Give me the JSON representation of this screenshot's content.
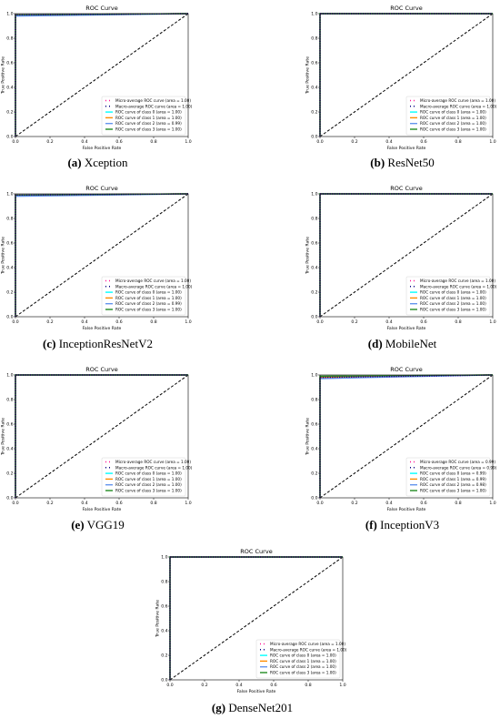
{
  "common": {
    "title": "ROC Curve",
    "xlabel": "False Positive Rate",
    "ylabel": "True Positive Rate",
    "ticks": [
      "0.0",
      "0.2",
      "0.4",
      "0.6",
      "0.8",
      "1.0"
    ]
  },
  "chart_data": [
    {
      "type": "line",
      "panel_label": "(a)",
      "model": "Xception",
      "title": "ROC Curve",
      "xlabel": "False Positive Rate",
      "ylabel": "True Positive Rate",
      "xlim": [
        0,
        1
      ],
      "ylim": [
        0,
        1
      ],
      "grid": false,
      "legend": "lower-right",
      "tick_values": [
        "0.0",
        "0.2",
        "0.4",
        "0.6",
        "0.8",
        "1.0"
      ],
      "series": [
        {
          "name": "Micro-average ROC curve (area = 1.00)",
          "color": "#ff1493",
          "style": "dotted",
          "x": [
            0,
            0.0,
            1
          ],
          "y": [
            0,
            0.99,
            1
          ]
        },
        {
          "name": "Macro-average ROC curve (area = 1.00)",
          "color": "#000080",
          "style": "dotted",
          "x": [
            0,
            0.0,
            1
          ],
          "y": [
            0,
            0.99,
            1
          ]
        },
        {
          "name": "ROC curve of class 0 (area = 1.00)",
          "color": "#00ffff",
          "style": "solid",
          "x": [
            0,
            0.0,
            1
          ],
          "y": [
            0,
            0.99,
            1
          ]
        },
        {
          "name": "ROC curve of class 1 (area = 1.00)",
          "color": "#ff8c00",
          "style": "solid",
          "x": [
            0,
            0.0,
            1
          ],
          "y": [
            0,
            0.99,
            1
          ]
        },
        {
          "name": "ROC curve of class 2 (area = 0.99)",
          "color": "#6495ed",
          "style": "solid",
          "x": [
            0,
            0.0,
            1
          ],
          "y": [
            0,
            0.98,
            1
          ]
        },
        {
          "name": "ROC curve of class 3 (area = 1.00)",
          "color": "#228b22",
          "style": "solid",
          "x": [
            0,
            0.0,
            1
          ],
          "y": [
            0,
            0.99,
            1
          ]
        }
      ]
    },
    {
      "type": "line",
      "panel_label": "(b)",
      "model": "ResNet50",
      "title": "ROC Curve",
      "xlabel": "False Positive Rate",
      "ylabel": "True Positive Rate",
      "xlim": [
        0,
        1
      ],
      "ylim": [
        0,
        1
      ],
      "grid": false,
      "legend": "lower-right",
      "tick_values": [
        "0.0",
        "0.2",
        "0.4",
        "0.6",
        "0.8",
        "1.0"
      ],
      "series": [
        {
          "name": "Micro-average ROC curve (area = 1.00)",
          "color": "#ff1493",
          "style": "dotted",
          "x": [
            0,
            0.0,
            1
          ],
          "y": [
            0,
            1.0,
            1
          ]
        },
        {
          "name": "Macro-average ROC curve (area = 1.00)",
          "color": "#000080",
          "style": "dotted",
          "x": [
            0,
            0.0,
            1
          ],
          "y": [
            0,
            1.0,
            1
          ]
        },
        {
          "name": "ROC curve of class 0 (area = 1.00)",
          "color": "#00ffff",
          "style": "solid",
          "x": [
            0,
            0.0,
            1
          ],
          "y": [
            0,
            1.0,
            1
          ]
        },
        {
          "name": "ROC curve of class 1 (area = 1.00)",
          "color": "#ff8c00",
          "style": "solid",
          "x": [
            0,
            0.0,
            1
          ],
          "y": [
            0,
            1.0,
            1
          ]
        },
        {
          "name": "ROC curve of class 2 (area = 1.00)",
          "color": "#6495ed",
          "style": "solid",
          "x": [
            0,
            0.0,
            1
          ],
          "y": [
            0,
            1.0,
            1
          ]
        },
        {
          "name": "ROC curve of class 3 (area = 1.00)",
          "color": "#228b22",
          "style": "solid",
          "x": [
            0,
            0.0,
            1
          ],
          "y": [
            0,
            1.0,
            1
          ]
        }
      ]
    },
    {
      "type": "line",
      "panel_label": "(c)",
      "model": "InceptionResNetV2",
      "title": "ROC Curve",
      "xlabel": "False Positive Rate",
      "ylabel": "True Positive Rate",
      "xlim": [
        0,
        1
      ],
      "ylim": [
        0,
        1
      ],
      "grid": false,
      "legend": "lower-right",
      "tick_values": [
        "0.0",
        "0.2",
        "0.4",
        "0.6",
        "0.8",
        "1.0"
      ],
      "series": [
        {
          "name": "Micro-average ROC curve (area = 1.00)",
          "color": "#ff1493",
          "style": "dotted",
          "x": [
            0,
            0.0,
            1
          ],
          "y": [
            0,
            0.99,
            1
          ]
        },
        {
          "name": "Macro-average ROC curve (area = 1.00)",
          "color": "#000080",
          "style": "dotted",
          "x": [
            0,
            0.0,
            1
          ],
          "y": [
            0,
            0.99,
            1
          ]
        },
        {
          "name": "ROC curve of class 0 (area = 1.00)",
          "color": "#00ffff",
          "style": "solid",
          "x": [
            0,
            0.0,
            1
          ],
          "y": [
            0,
            0.99,
            1
          ]
        },
        {
          "name": "ROC curve of class 1 (area = 1.00)",
          "color": "#ff8c00",
          "style": "solid",
          "x": [
            0,
            0.0,
            1
          ],
          "y": [
            0,
            0.99,
            1
          ]
        },
        {
          "name": "ROC curve of class 2 (area = 0.99)",
          "color": "#6495ed",
          "style": "solid",
          "x": [
            0,
            0.0,
            1
          ],
          "y": [
            0,
            0.98,
            1
          ]
        },
        {
          "name": "ROC curve of class 3 (area = 1.00)",
          "color": "#228b22",
          "style": "solid",
          "x": [
            0,
            0.0,
            1
          ],
          "y": [
            0,
            0.99,
            1
          ]
        }
      ]
    },
    {
      "type": "line",
      "panel_label": "(d)",
      "model": "MobileNet",
      "title": "ROC Curve",
      "xlabel": "False Positive Rate",
      "ylabel": "True Positive Rate",
      "xlim": [
        0,
        1
      ],
      "ylim": [
        0,
        1
      ],
      "grid": false,
      "legend": "lower-right",
      "tick_values": [
        "0.0",
        "0.2",
        "0.4",
        "0.6",
        "0.8",
        "1.0"
      ],
      "series": [
        {
          "name": "Micro-average ROC curve (area = 1.00)",
          "color": "#ff1493",
          "style": "dotted",
          "x": [
            0,
            0.0,
            1
          ],
          "y": [
            0,
            1.0,
            1
          ]
        },
        {
          "name": "Macro-average ROC curve (area = 1.00)",
          "color": "#000080",
          "style": "dotted",
          "x": [
            0,
            0.0,
            1
          ],
          "y": [
            0,
            1.0,
            1
          ]
        },
        {
          "name": "ROC curve of class 0 (area = 1.00)",
          "color": "#00ffff",
          "style": "solid",
          "x": [
            0,
            0.0,
            1
          ],
          "y": [
            0,
            1.0,
            1
          ]
        },
        {
          "name": "ROC curve of class 1 (area = 1.00)",
          "color": "#ff8c00",
          "style": "solid",
          "x": [
            0,
            0.0,
            1
          ],
          "y": [
            0,
            1.0,
            1
          ]
        },
        {
          "name": "ROC curve of class 2 (area = 1.00)",
          "color": "#6495ed",
          "style": "solid",
          "x": [
            0,
            0.0,
            1
          ],
          "y": [
            0,
            1.0,
            1
          ]
        },
        {
          "name": "ROC curve of class 3 (area = 1.00)",
          "color": "#228b22",
          "style": "solid",
          "x": [
            0,
            0.0,
            1
          ],
          "y": [
            0,
            1.0,
            1
          ]
        }
      ]
    },
    {
      "type": "line",
      "panel_label": "(e)",
      "model": "VGG19",
      "title": "ROC Curve",
      "xlabel": "False Positive Rate",
      "ylabel": "True Positive Rate",
      "xlim": [
        0,
        1
      ],
      "ylim": [
        0,
        1
      ],
      "grid": false,
      "legend": "lower-right",
      "tick_values": [
        "0.0",
        "0.2",
        "0.4",
        "0.6",
        "0.8",
        "1.0"
      ],
      "series": [
        {
          "name": "Micro-average ROC curve (area = 1.00)",
          "color": "#ff1493",
          "style": "dotted",
          "x": [
            0,
            0.0,
            1
          ],
          "y": [
            0,
            1.0,
            1
          ]
        },
        {
          "name": "Macro-average ROC curve (area = 1.00)",
          "color": "#000080",
          "style": "dotted",
          "x": [
            0,
            0.0,
            1
          ],
          "y": [
            0,
            1.0,
            1
          ]
        },
        {
          "name": "ROC curve of class 0 (area = 1.00)",
          "color": "#00ffff",
          "style": "solid",
          "x": [
            0,
            0.0,
            1
          ],
          "y": [
            0,
            1.0,
            1
          ]
        },
        {
          "name": "ROC curve of class 1 (area = 1.00)",
          "color": "#ff8c00",
          "style": "solid",
          "x": [
            0,
            0.0,
            1
          ],
          "y": [
            0,
            1.0,
            1
          ]
        },
        {
          "name": "ROC curve of class 2 (area = 1.00)",
          "color": "#6495ed",
          "style": "solid",
          "x": [
            0,
            0.0,
            1
          ],
          "y": [
            0,
            1.0,
            1
          ]
        },
        {
          "name": "ROC curve of class 3 (area = 1.00)",
          "color": "#228b22",
          "style": "solid",
          "x": [
            0,
            0.0,
            1
          ],
          "y": [
            0,
            1.0,
            1
          ]
        }
      ]
    },
    {
      "type": "line",
      "panel_label": "(f)",
      "model": "InceptionV3",
      "title": "ROC Curve",
      "xlabel": "False Positive Rate",
      "ylabel": "True Positive Rate",
      "xlim": [
        0,
        1
      ],
      "ylim": [
        0,
        1
      ],
      "grid": false,
      "legend": "lower-right",
      "tick_values": [
        "0.0",
        "0.2",
        "0.4",
        "0.6",
        "0.8",
        "1.0"
      ],
      "series": [
        {
          "name": "Micro-average ROC curve (area = 0.99)",
          "color": "#ff1493",
          "style": "dotted",
          "x": [
            0,
            0.0,
            1
          ],
          "y": [
            0,
            0.98,
            1
          ]
        },
        {
          "name": "Macro-average ROC curve (area = 0.99)",
          "color": "#000080",
          "style": "dotted",
          "x": [
            0,
            0.0,
            1
          ],
          "y": [
            0,
            0.98,
            1
          ]
        },
        {
          "name": "ROC curve of class 0 (area = 0.99)",
          "color": "#00ffff",
          "style": "solid",
          "x": [
            0,
            0.0,
            0.3,
            1
          ],
          "y": [
            0,
            0.98,
            0.99,
            1
          ]
        },
        {
          "name": "ROC curve of class 1 (area = 0.99)",
          "color": "#ff8c00",
          "style": "solid",
          "x": [
            0,
            0.0,
            0.3,
            1
          ],
          "y": [
            0,
            0.98,
            0.99,
            1
          ]
        },
        {
          "name": "ROC curve of class 2 (area = 0.98)",
          "color": "#6495ed",
          "style": "solid",
          "x": [
            0,
            0.0,
            0.3,
            1
          ],
          "y": [
            0,
            0.97,
            0.98,
            1
          ]
        },
        {
          "name": "ROC curve of class 3 (area = 1.00)",
          "color": "#228b22",
          "style": "solid",
          "x": [
            0,
            0.0,
            1
          ],
          "y": [
            0,
            0.99,
            1
          ]
        }
      ]
    },
    {
      "type": "line",
      "panel_label": "(g)",
      "model": "DenseNet201",
      "title": "ROC Curve",
      "xlabel": "False Positive Rate",
      "ylabel": "True Positive Rate",
      "xlim": [
        0,
        1
      ],
      "ylim": [
        0,
        1
      ],
      "grid": false,
      "legend": "lower-right",
      "tick_values": [
        "0.0",
        "0.2",
        "0.4",
        "0.6",
        "0.8",
        "1.0"
      ],
      "series": [
        {
          "name": "Micro-average ROC curve (area = 1.00)",
          "color": "#ff1493",
          "style": "dotted",
          "x": [
            0,
            0.0,
            1
          ],
          "y": [
            0,
            1.0,
            1
          ]
        },
        {
          "name": "Macro-average ROC curve (area = 1.00)",
          "color": "#000080",
          "style": "dotted",
          "x": [
            0,
            0.0,
            1
          ],
          "y": [
            0,
            1.0,
            1
          ]
        },
        {
          "name": "ROC curve of class 0 (area = 1.00)",
          "color": "#00ffff",
          "style": "solid",
          "x": [
            0,
            0.0,
            1
          ],
          "y": [
            0,
            1.0,
            1
          ]
        },
        {
          "name": "ROC curve of class 1 (area = 1.00)",
          "color": "#ff8c00",
          "style": "solid",
          "x": [
            0,
            0.0,
            1
          ],
          "y": [
            0,
            1.0,
            1
          ]
        },
        {
          "name": "ROC curve of class 2 (area = 1.00)",
          "color": "#6495ed",
          "style": "solid",
          "x": [
            0,
            0.0,
            1
          ],
          "y": [
            0,
            1.0,
            1
          ]
        },
        {
          "name": "ROC curve of class 3 (area = 1.00)",
          "color": "#228b22",
          "style": "solid",
          "x": [
            0,
            0.0,
            1
          ],
          "y": [
            0,
            1.0,
            1
          ]
        }
      ]
    }
  ]
}
